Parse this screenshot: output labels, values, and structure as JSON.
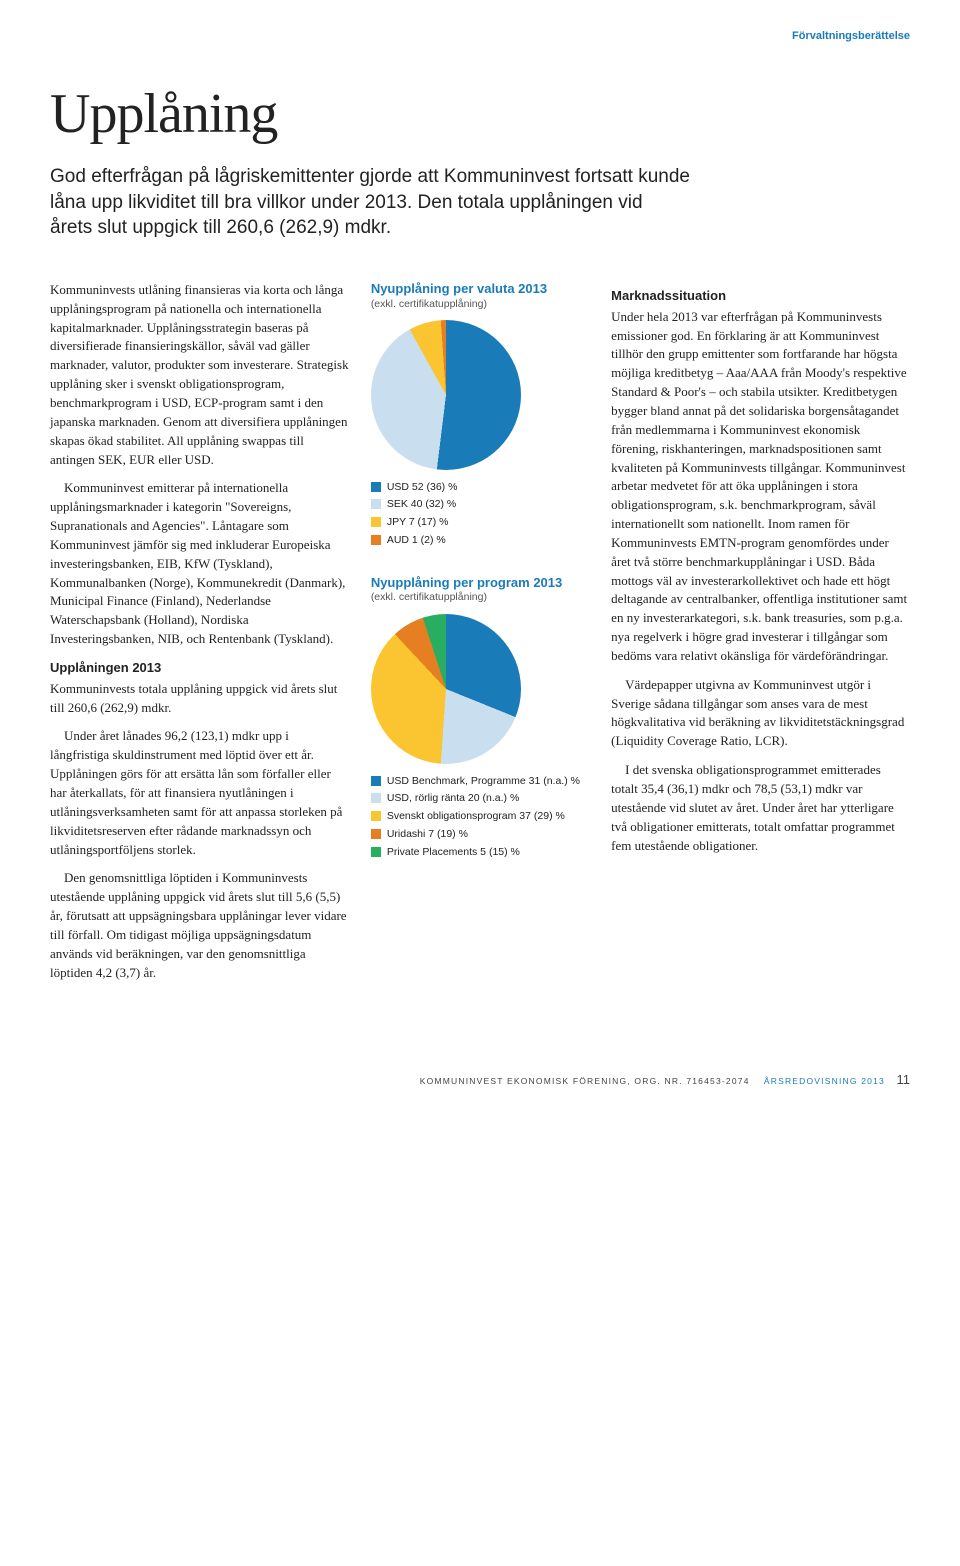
{
  "header_label": "Förvaltningsberättelse",
  "title": "Upplåning",
  "lead": "God efterfrågan på lågriskemittenter gjorde att Kommuninvest fortsatt kunde låna upp likviditet till bra villkor under 2013. Den totala upplåningen vid årets slut uppgick till 260,6 (262,9) mdkr.",
  "left": {
    "p1": "Kommuninvests utlåning finansieras via korta och långa upplåningsprogram på nationella och internationella kapitalmarknader. Upplåningsstrategin baseras på diversifierade finansieringskällor, såväl vad gäller marknader, valutor, produkter som investerare. Strategisk upplåning sker i svenskt obligationsprogram, benchmarkprogram i USD, ECP-program samt i den japanska marknaden. Genom att diversifiera upplåningen skapas ökad stabilitet. All upplåning swappas till antingen SEK, EUR eller USD.",
    "p2": "Kommuninvest emitterar på internationella upplåningsmarknader i kategorin \"Sovereigns, Supranationals and Agencies\". Låntagare som Kommuninvest jämför sig med inkluderar Europeiska investeringsbanken, EIB, KfW (Tyskland), Kommunalbanken (Norge), Kommunekredit (Danmark), Municipal Finance (Finland), Nederlandse Waterschapsbank (Holland), Nordiska Investeringsbanken, NIB, och Rentenbank (Tyskland).",
    "sub": "Upplåningen 2013",
    "p3": "Kommuninvests totala upplåning uppgick vid årets slut till 260,6 (262,9) mdkr.",
    "p4": "Under året lånades 96,2 (123,1) mdkr upp i långfristiga skuldinstrument med löptid över ett år. Upplåningen görs för att ersätta lån som förfaller eller har återkallats, för att finansiera nyutlåningen i utlåningsverksamheten samt för att anpassa storleken på likviditetsreserven efter rådande marknadssyn och utlåningsportföljens storlek.",
    "p5": "Den genomsnittliga löptiden i Kommuninvests utestående upplåning uppgick vid årets slut till 5,6 (5,5) år, förutsatt att uppsägningsbara upplåningar lever vidare till förfall. Om tidigast möjliga uppsägningsdatum används vid beräkningen, var den genomsnittliga löptiden 4,2 (3,7) år."
  },
  "chart1": {
    "title": "Nyupplåning per valuta 2013",
    "sub": "(exkl. certifikatupplåning)",
    "colors": {
      "usd": "#1a7bb9",
      "sek": "#c9dff0",
      "jpy": "#fbc531",
      "aud": "#e67e22"
    },
    "slices_deg": {
      "usd": 187,
      "sek": 144,
      "jpy": 25,
      "aud": 4
    },
    "legend": [
      {
        "key": "usd",
        "label": "USD 52 (36) %"
      },
      {
        "key": "sek",
        "label": "SEK 40 (32) %"
      },
      {
        "key": "jpy",
        "label": "JPY 7 (17) %"
      },
      {
        "key": "aud",
        "label": "AUD 1 (2) %"
      }
    ]
  },
  "chart2": {
    "title": "Nyupplåning per program 2013",
    "sub": "(exkl. certifikatupplåning)",
    "colors": {
      "bench": "#1a7bb9",
      "usdr": "#c9dff0",
      "svob": "#fbc531",
      "urid": "#e67e22",
      "priv": "#27ae60"
    },
    "slices_deg": {
      "bench": 112,
      "usdr": 72,
      "svob": 133,
      "urid": 25,
      "priv": 18
    },
    "legend": [
      {
        "key": "bench",
        "label": "USD Benchmark, Programme 31 (n.a.) %"
      },
      {
        "key": "usdr",
        "label": "USD, rörlig ränta 20 (n.a.) %"
      },
      {
        "key": "svob",
        "label": "Svenskt obligationsprogram 37 (29) %"
      },
      {
        "key": "urid",
        "label": "Uridashi 7 (19) %"
      },
      {
        "key": "priv",
        "label": "Private Placements 5 (15) %"
      }
    ]
  },
  "right": {
    "sub": "Marknadssituation",
    "p1": "Under hela 2013 var efterfrågan på Kommuninvests emissioner god. En förklaring är att Kommuninvest tillhör den grupp emittenter som fortfarande har högsta möjliga kreditbetyg – Aaa/AAA från Moody's respektive Standard & Poor's – och stabila utsikter. Kreditbetygen bygger bland annat på det solidariska borgensåtagandet från medlemmarna i Kommuninvest ekonomisk förening, riskhanteringen, marknadspositionen samt kvaliteten på Kommuninvests tillgångar. Kommuninvest arbetar medvetet för att öka upplåningen i stora obligationsprogram, s.k. benchmarkprogram, såväl internationellt som nationellt. Inom ramen för Kommuninvests EMTN-program genomfördes under året två större benchmarkupplåningar i USD. Båda mottogs väl av investerarkollektivet och hade ett högt deltagande av centralbanker, offentliga institutioner samt en ny investerarkategori, s.k. bank treasuries, som p.g.a. nya regelverk i högre grad investerar i tillgångar som bedöms vara relativt okänsliga för värdeförändringar.",
    "p2": "Värdepapper utgivna av Kommuninvest utgör i Sverige sådana tillgångar som anses vara de mest högkvalitativa vid beräkning av likviditets­täckningsgrad (Liquidity Coverage Ratio, LCR).",
    "p3": "I det svenska obligationsprogrammet emitterades totalt 35,4 (36,1) mdkr och 78,5 (53,1) mdkr var utestående vid slutet av året. Under året har ytterligare två obligationer emitterats, totalt omfattar programmet fem utestående obligationer."
  },
  "footer": {
    "org": "KOMMUNINVEST EKONOMISK FÖRENING, ORG. NR. 716453-2074",
    "year": "ÅRSREDOVISNING 2013",
    "page": "11"
  }
}
